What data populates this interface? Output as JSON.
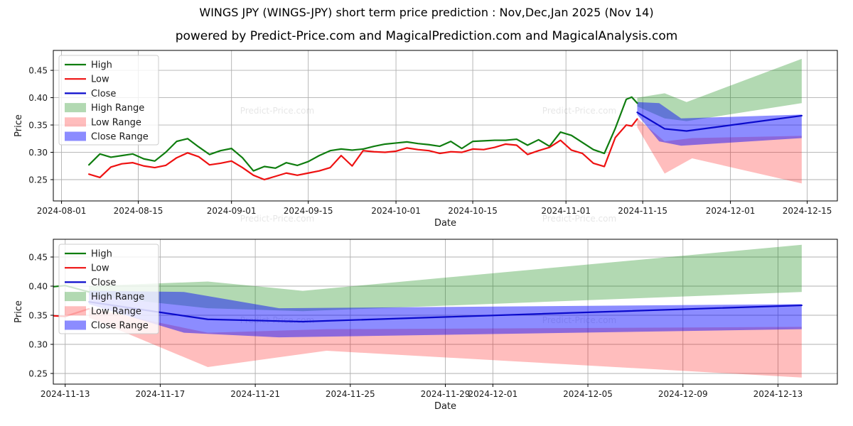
{
  "title": "WINGS JPY (WINGS-JPY) short term price prediction : Nov,Dec,Jan 2025 (Nov 14)",
  "subtitle": "powered by Predict-Price.com and MagicalPrediction.com and MagicalAnalysis.com",
  "watermark": "Predict-Price.com",
  "legend": [
    "High",
    "Low",
    "Close",
    "High Range",
    "Low Range",
    "Close Range"
  ],
  "colors": {
    "high": "#0f7d0f",
    "low": "#ee1111",
    "close": "#0a0acc",
    "high_range": "rgba(0,128,0,0.30)",
    "low_range": "rgba(255,0,0,0.26)",
    "close_range": "rgba(0,0,255,0.45)",
    "grid": "#b0b0b0",
    "spine": "#000000",
    "text": "#1a1a1a",
    "watermark": "#3a3a3a"
  },
  "chart_data": {
    "type": "line",
    "title": "WINGS JPY (WINGS-JPY) short term price prediction : Nov,Dec,Jan 2025 (Nov 14)",
    "legend_position": "upper left",
    "grid": true,
    "series": {
      "historical": {
        "dates": [
          "2024-08-06",
          "2024-08-08",
          "2024-08-10",
          "2024-08-12",
          "2024-08-14",
          "2024-08-16",
          "2024-08-18",
          "2024-08-20",
          "2024-08-22",
          "2024-08-24",
          "2024-08-26",
          "2024-08-28",
          "2024-08-30",
          "2024-09-01",
          "2024-09-03",
          "2024-09-05",
          "2024-09-07",
          "2024-09-09",
          "2024-09-11",
          "2024-09-13",
          "2024-09-15",
          "2024-09-17",
          "2024-09-19",
          "2024-09-21",
          "2024-09-23",
          "2024-09-25",
          "2024-09-27",
          "2024-09-29",
          "2024-10-01",
          "2024-10-03",
          "2024-10-05",
          "2024-10-07",
          "2024-10-09",
          "2024-10-11",
          "2024-10-13",
          "2024-10-15",
          "2024-10-17",
          "2024-10-19",
          "2024-10-21",
          "2024-10-23",
          "2024-10-25",
          "2024-10-27",
          "2024-10-29",
          "2024-10-31",
          "2024-11-02",
          "2024-11-04",
          "2024-11-06",
          "2024-11-08",
          "2024-11-10",
          "2024-11-12",
          "2024-11-13",
          "2024-11-14"
        ],
        "high": [
          0.277,
          0.297,
          0.291,
          0.294,
          0.297,
          0.288,
          0.284,
          0.3,
          0.32,
          0.325,
          0.31,
          0.296,
          0.303,
          0.307,
          0.29,
          0.266,
          0.274,
          0.271,
          0.281,
          0.276,
          0.283,
          0.294,
          0.303,
          0.306,
          0.304,
          0.306,
          0.311,
          0.315,
          0.317,
          0.319,
          0.316,
          0.314,
          0.311,
          0.32,
          0.307,
          0.32,
          0.321,
          0.322,
          0.322,
          0.324,
          0.313,
          0.323,
          0.311,
          0.337,
          0.331,
          0.318,
          0.305,
          0.298,
          0.344,
          0.397,
          0.401,
          0.39
        ],
        "low": [
          0.26,
          0.254,
          0.273,
          0.279,
          0.281,
          0.275,
          0.272,
          0.276,
          0.29,
          0.299,
          0.292,
          0.277,
          0.28,
          0.284,
          0.272,
          0.258,
          0.25,
          0.256,
          0.262,
          0.258,
          0.262,
          0.266,
          0.272,
          0.294,
          0.275,
          0.303,
          0.301,
          0.3,
          0.302,
          0.308,
          0.305,
          0.303,
          0.298,
          0.301,
          0.3,
          0.306,
          0.305,
          0.309,
          0.315,
          0.313,
          0.296,
          0.303,
          0.309,
          0.322,
          0.304,
          0.298,
          0.28,
          0.274,
          0.327,
          0.35,
          0.348,
          0.361
        ]
      },
      "prediction": {
        "close_line": {
          "dates": [
            "2024-11-14",
            "2024-11-19",
            "2024-11-23",
            "2024-12-14"
          ],
          "values": [
            0.373,
            0.343,
            0.339,
            0.367
          ]
        },
        "high_range": {
          "dates": [
            "2024-11-14",
            "2024-11-19",
            "2024-11-23",
            "2024-12-14"
          ],
          "top": [
            0.4,
            0.408,
            0.392,
            0.471
          ],
          "bottom": [
            0.384,
            0.362,
            0.357,
            0.39
          ]
        },
        "low_range": {
          "dates": [
            "2024-11-14",
            "2024-11-19",
            "2024-11-24",
            "2024-12-14"
          ],
          "top": [
            0.362,
            0.32,
            0.326,
            0.33
          ],
          "bottom": [
            0.346,
            0.261,
            0.289,
            0.243
          ]
        },
        "close_range": {
          "dates": [
            "2024-11-14",
            "2024-11-18",
            "2024-11-22",
            "2024-12-14"
          ],
          "top": [
            0.392,
            0.39,
            0.362,
            0.369
          ],
          "bottom": [
            0.369,
            0.32,
            0.312,
            0.326
          ]
        }
      }
    },
    "charts": [
      {
        "name": "full_history",
        "xlabel": "Date",
        "ylabel": "Price",
        "y_ticks": [
          "0.25",
          "0.30",
          "0.35",
          "0.40",
          "0.45"
        ],
        "x_ticks": [
          "2024-08-01",
          "2024-08-15",
          "2024-09-01",
          "2024-09-15",
          "2024-10-01",
          "2024-10-15",
          "2024-11-01",
          "2024-11-15",
          "2024-12-01",
          "2024-12-15"
        ],
        "xlim": [
          "2024-07-30T12:00:00",
          "2024-12-20T12:00:00"
        ],
        "ylim": [
          0.211,
          0.4865
        ]
      },
      {
        "name": "prediction_zoom",
        "xlabel": "Date",
        "ylabel": "Price",
        "y_ticks": [
          "0.25",
          "0.30",
          "0.35",
          "0.40",
          "0.45"
        ],
        "x_ticks": [
          "2024-11-13",
          "2024-11-17",
          "2024-11-21",
          "2024-11-25",
          "2024-11-29",
          "2024-12-01",
          "2024-12-05",
          "2024-12-09",
          "2024-12-13"
        ],
        "xlim": [
          "2024-11-12T12:00:00",
          "2024-12-15T12:00:00"
        ],
        "ylim": [
          0.2317,
          0.4805
        ]
      }
    ]
  }
}
